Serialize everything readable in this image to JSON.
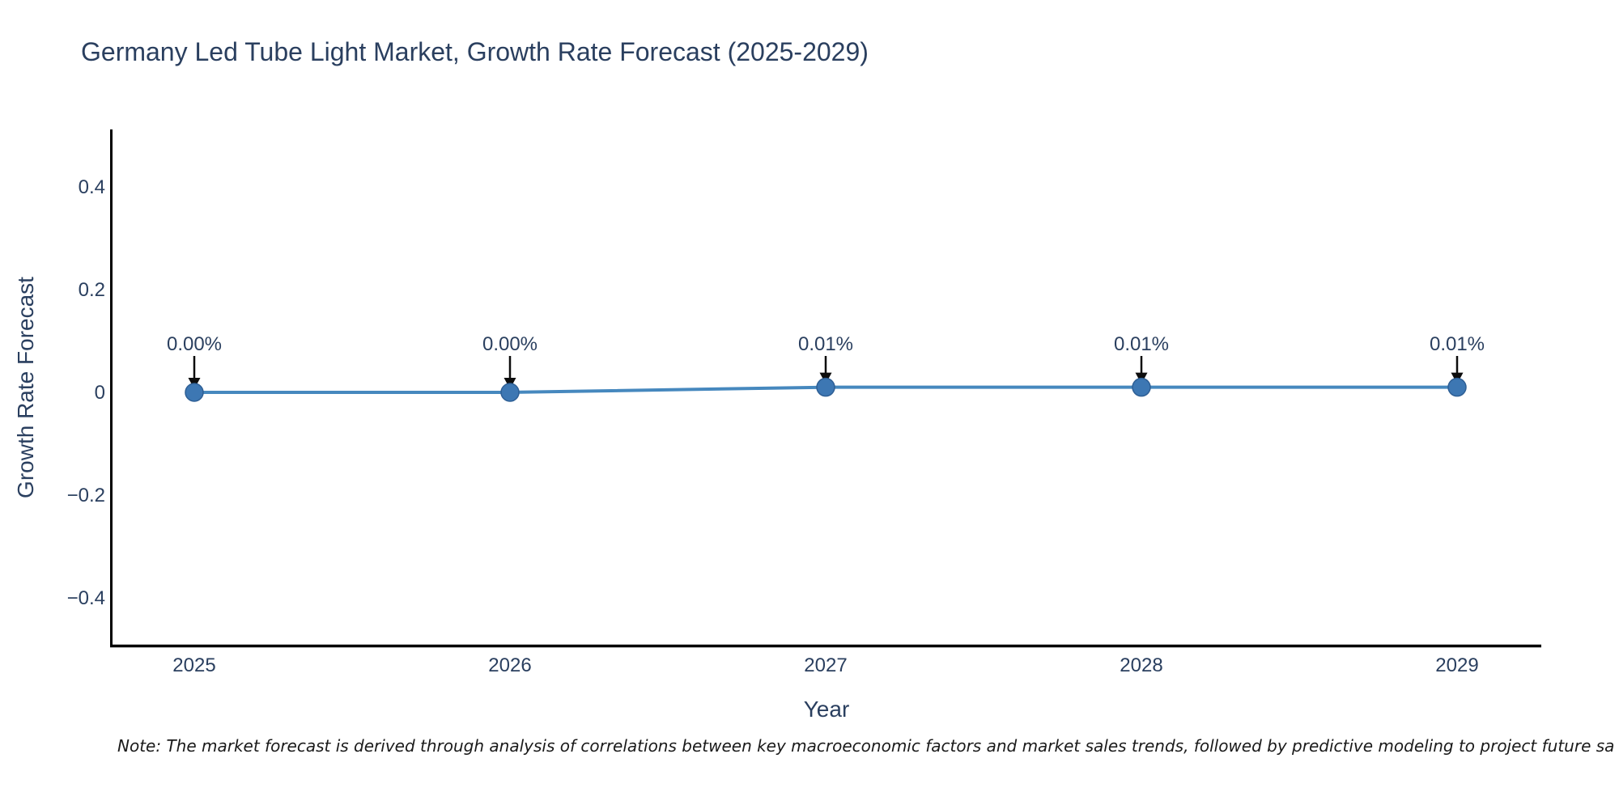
{
  "chart_data": {
    "type": "line",
    "title": "Germany Led Tube Light Market, Growth Rate Forecast (2025-2029)",
    "xlabel": "Year",
    "ylabel": "Growth Rate Forecast",
    "x": [
      2025,
      2026,
      2027,
      2028,
      2029
    ],
    "series": [
      {
        "name": "Growth Rate Forecast",
        "values": [
          0.0,
          0.0,
          0.01,
          0.01,
          0.01
        ]
      }
    ],
    "point_labels": [
      "0.00%",
      "0.00%",
      "0.01%",
      "0.01%",
      "0.01%"
    ],
    "yticks": [
      0.4,
      0.2,
      0,
      -0.2,
      -0.4
    ],
    "ylim": [
      -0.49,
      0.51
    ],
    "grid": false,
    "legend_position": "none",
    "annotation_style": "black-arrow-pointing-down-to-point",
    "colors": {
      "line": "#4688be",
      "marker": "#3d77b3",
      "marker_edge": "#2e5f95",
      "arrow": "#0d0d0d",
      "axis_line": "#000000",
      "text": "#2a3f5f",
      "note_text": "#1a1a1a",
      "background": "#ffffff"
    }
  },
  "note": {
    "text": "Note: The market forecast is derived through analysis of correlations between key macroeconomic factors and market sales trends, followed by predictive modeling to project future sa"
  }
}
